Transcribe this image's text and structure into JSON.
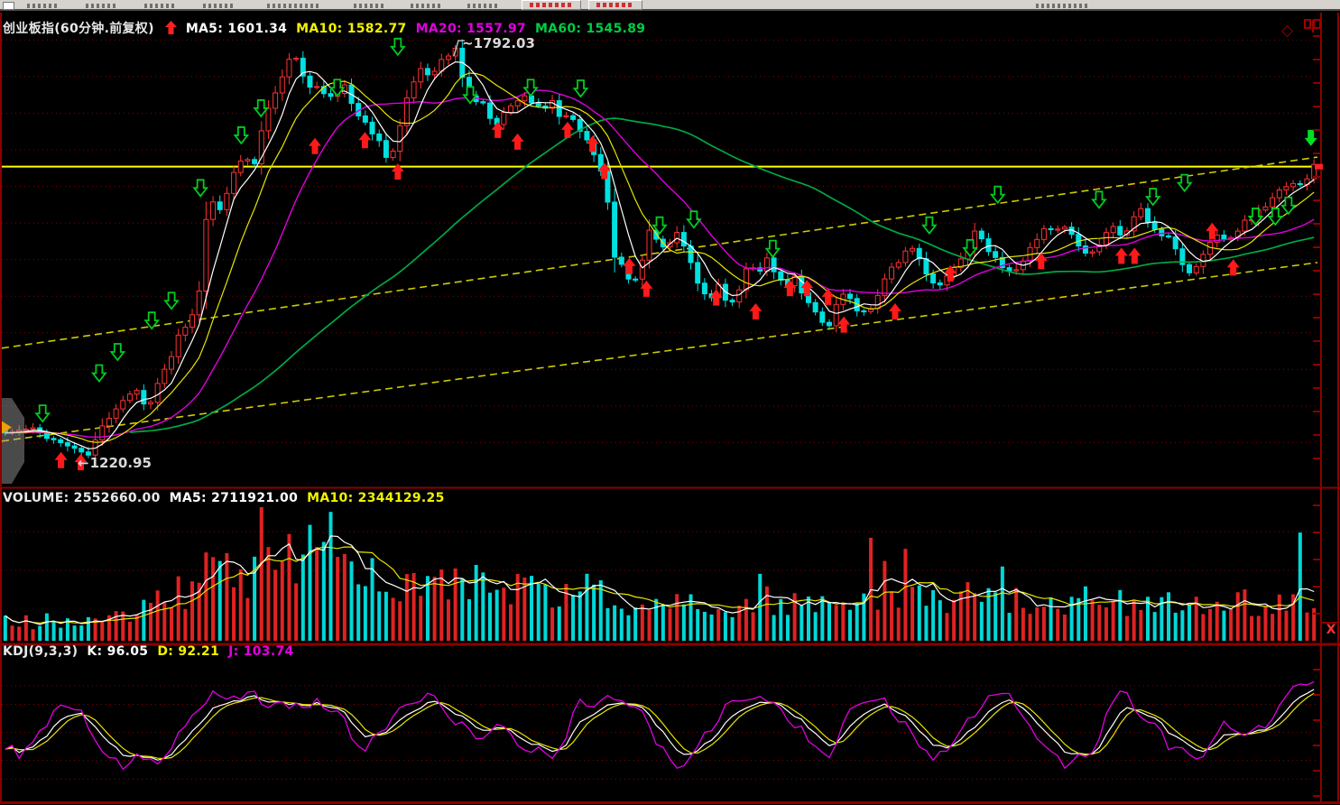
{
  "toolbar": {
    "buttons": 2
  },
  "main_chart": {
    "title": "创业板指(60分钟.前复权)",
    "ma_items": [
      {
        "text": "MA5: 1601.34",
        "color": "#ffffff"
      },
      {
        "text": "MA10: 1582.77",
        "color": "#f2f200"
      },
      {
        "text": "MA20: 1557.97",
        "color": "#e000e0"
      },
      {
        "text": "MA60: 1545.89",
        "color": "#00cc44"
      }
    ],
    "high_prefix": "~",
    "high_label": "1792.03",
    "low_arrow": "←",
    "low_label": "1220.95",
    "corner_diamond": "◇"
  },
  "volume_pane": {
    "volume_label": "VOLUME: 2552660.00",
    "ma5_label": "MA5: 2711921.00",
    "ma10_label": "MA10: 2344129.25",
    "close_button": "X"
  },
  "kdj_pane": {
    "name_label": "KDJ(9,3,3)",
    "k_label": "K: 96.05",
    "d_label": "D: 92.21",
    "j_label": "J: 103.74"
  },
  "chart_data": [
    {
      "type": "candlestick",
      "symbol": "创业板指",
      "period": "60分钟",
      "adjust": "前复权",
      "bars": 190,
      "seed": 11,
      "price_range": [
        1195,
        1830
      ],
      "visible_high": 1792.03,
      "visible_low": 1220.95,
      "grid_step": 50,
      "ma_values": {
        "MA5": 1601.34,
        "MA10": 1582.77,
        "MA20": 1557.97,
        "MA60": 1545.89
      },
      "close_anchors": [
        [
          0,
          1263
        ],
        [
          0.02,
          1269
        ],
        [
          0.041,
          1250
        ],
        [
          0.055,
          1241
        ],
        [
          0.062,
          1228
        ],
        [
          0.075,
          1275
        ],
        [
          0.088,
          1306
        ],
        [
          0.1,
          1324
        ],
        [
          0.108,
          1294
        ],
        [
          0.118,
          1337
        ],
        [
          0.127,
          1368
        ],
        [
          0.133,
          1398
        ],
        [
          0.141,
          1411
        ],
        [
          0.148,
          1455
        ],
        [
          0.152,
          1545
        ],
        [
          0.158,
          1582
        ],
        [
          0.165,
          1570
        ],
        [
          0.172,
          1600
        ],
        [
          0.178,
          1635
        ],
        [
          0.185,
          1640
        ],
        [
          0.191,
          1628
        ],
        [
          0.197,
          1690
        ],
        [
          0.205,
          1722
        ],
        [
          0.212,
          1748
        ],
        [
          0.219,
          1789
        ],
        [
          0.226,
          1752
        ],
        [
          0.232,
          1736
        ],
        [
          0.24,
          1742
        ],
        [
          0.247,
          1718
        ],
        [
          0.253,
          1725
        ],
        [
          0.26,
          1740
        ],
        [
          0.267,
          1702
        ],
        [
          0.274,
          1688
        ],
        [
          0.281,
          1674
        ],
        [
          0.287,
          1658
        ],
        [
          0.293,
          1636
        ],
        [
          0.298,
          1655
        ],
        [
          0.304,
          1700
        ],
        [
          0.31,
          1735
        ],
        [
          0.317,
          1762
        ],
        [
          0.324,
          1752
        ],
        [
          0.331,
          1768
        ],
        [
          0.338,
          1778
        ],
        [
          0.345,
          1788
        ],
        [
          0.352,
          1726
        ],
        [
          0.359,
          1718
        ],
        [
          0.366,
          1710
        ],
        [
          0.374,
          1684
        ],
        [
          0.381,
          1700
        ],
        [
          0.388,
          1712
        ],
        [
          0.395,
          1728
        ],
        [
          0.404,
          1712
        ],
        [
          0.411,
          1700
        ],
        [
          0.418,
          1716
        ],
        [
          0.425,
          1690
        ],
        [
          0.432,
          1696
        ],
        [
          0.439,
          1676
        ],
        [
          0.446,
          1662
        ],
        [
          0.452,
          1632
        ],
        [
          0.458,
          1618
        ],
        [
          0.464,
          1508
        ],
        [
          0.471,
          1494
        ],
        [
          0.478,
          1470
        ],
        [
          0.485,
          1483
        ],
        [
          0.492,
          1540
        ],
        [
          0.499,
          1524
        ],
        [
          0.506,
          1517
        ],
        [
          0.513,
          1537
        ],
        [
          0.521,
          1506
        ],
        [
          0.531,
          1458
        ],
        [
          0.539,
          1445
        ],
        [
          0.546,
          1470
        ],
        [
          0.553,
          1433
        ],
        [
          0.561,
          1458
        ],
        [
          0.568,
          1493
        ],
        [
          0.575,
          1481
        ],
        [
          0.582,
          1505
        ],
        [
          0.589,
          1475
        ],
        [
          0.596,
          1462
        ],
        [
          0.603,
          1475
        ],
        [
          0.61,
          1450
        ],
        [
          0.616,
          1433
        ],
        [
          0.623,
          1420
        ],
        [
          0.629,
          1408
        ],
        [
          0.636,
          1443
        ],
        [
          0.642,
          1457
        ],
        [
          0.648,
          1438
        ],
        [
          0.654,
          1425
        ],
        [
          0.661,
          1433
        ],
        [
          0.671,
          1470
        ],
        [
          0.678,
          1493
        ],
        [
          0.684,
          1500
        ],
        [
          0.691,
          1517
        ],
        [
          0.701,
          1493
        ],
        [
          0.708,
          1470
        ],
        [
          0.714,
          1462
        ],
        [
          0.721,
          1481
        ],
        [
          0.728,
          1493
        ],
        [
          0.734,
          1512
        ],
        [
          0.741,
          1540
        ],
        [
          0.748,
          1524
        ],
        [
          0.754,
          1505
        ],
        [
          0.761,
          1493
        ],
        [
          0.768,
          1487
        ],
        [
          0.774,
          1481
        ],
        [
          0.781,
          1511
        ],
        [
          0.788,
          1524
        ],
        [
          0.794,
          1540
        ],
        [
          0.801,
          1536
        ],
        [
          0.807,
          1553
        ],
        [
          0.814,
          1536
        ],
        [
          0.821,
          1517
        ],
        [
          0.828,
          1505
        ],
        [
          0.834,
          1517
        ],
        [
          0.841,
          1540
        ],
        [
          0.848,
          1547
        ],
        [
          0.854,
          1529
        ],
        [
          0.861,
          1553
        ],
        [
          0.868,
          1571
        ],
        [
          0.874,
          1548
        ],
        [
          0.881,
          1536
        ],
        [
          0.888,
          1529
        ],
        [
          0.894,
          1517
        ],
        [
          0.901,
          1487
        ],
        [
          0.908,
          1481
        ],
        [
          0.914,
          1505
        ],
        [
          0.921,
          1524
        ],
        [
          0.928,
          1536
        ],
        [
          0.934,
          1529
        ],
        [
          0.941,
          1540
        ],
        [
          0.948,
          1553
        ],
        [
          0.954,
          1559
        ],
        [
          0.961,
          1571
        ],
        [
          0.968,
          1583
        ],
        [
          0.975,
          1595
        ],
        [
          0.985,
          1602
        ],
        [
          0.993,
          1609
        ],
        [
          1,
          1628
        ]
      ],
      "trendlines": [
        {
          "kind": "horizontal",
          "price": 1627,
          "color": "#ffff00",
          "style": "solid"
        },
        {
          "kind": "segment",
          "from": [
            0,
            1379
          ],
          "to": [
            1,
            1640
          ],
          "color": "#cccc00",
          "style": "dashed"
        },
        {
          "kind": "segment",
          "from": [
            0,
            1252
          ],
          "to": [
            1,
            1496
          ],
          "color": "#cccc00",
          "style": "dashed"
        }
      ],
      "buy_signals": [
        [
          0.045,
          1241
        ],
        [
          0.06,
          1238
        ],
        [
          0.238,
          1670
        ],
        [
          0.276,
          1678
        ],
        [
          0.301,
          1635
        ],
        [
          0.377,
          1692
        ],
        [
          0.392,
          1676
        ],
        [
          0.43,
          1692
        ],
        [
          0.449,
          1673
        ],
        [
          0.458,
          1636
        ],
        [
          0.477,
          1506
        ],
        [
          0.49,
          1475
        ],
        [
          0.543,
          1463
        ],
        [
          0.573,
          1444
        ],
        [
          0.599,
          1476
        ],
        [
          0.612,
          1476
        ],
        [
          0.628,
          1464
        ],
        [
          0.64,
          1426
        ],
        [
          0.679,
          1444
        ],
        [
          0.721,
          1496
        ],
        [
          0.79,
          1513
        ],
        [
          0.851,
          1520
        ],
        [
          0.861,
          1520
        ],
        [
          0.92,
          1554
        ],
        [
          0.936,
          1504
        ]
      ],
      "sell_signals": [
        [
          0.031,
          1275
        ],
        [
          0.074,
          1330
        ],
        [
          0.088,
          1359
        ],
        [
          0.114,
          1402
        ],
        [
          0.129,
          1429
        ],
        [
          0.151,
          1583
        ],
        [
          0.182,
          1655
        ],
        [
          0.197,
          1692
        ],
        [
          0.255,
          1720
        ],
        [
          0.301,
          1776
        ],
        [
          0.356,
          1710
        ],
        [
          0.402,
          1720
        ],
        [
          0.44,
          1719
        ],
        [
          0.5,
          1532
        ],
        [
          0.526,
          1540
        ],
        [
          0.586,
          1500
        ],
        [
          0.705,
          1532
        ],
        [
          0.736,
          1501
        ],
        [
          0.757,
          1574
        ],
        [
          0.834,
          1567
        ],
        [
          0.875,
          1571
        ],
        [
          0.899,
          1590
        ],
        [
          0.953,
          1544
        ],
        [
          0.968,
          1544
        ],
        [
          0.978,
          1559
        ]
      ],
      "sell_signal_solid": [
        0.995,
        1655
      ],
      "colors": {
        "up": "#ff3232",
        "down": "#00e0e0",
        "ma5": "#ffffff",
        "ma10": "#e6e600",
        "ma20": "#dd00dd",
        "ma60": "#00a844",
        "grid": "#8b0000"
      }
    },
    {
      "type": "bar",
      "name": "VOLUME",
      "current": 2552660.0,
      "ma5": 2711921.0,
      "ma10": 2344129.25,
      "seed": 23,
      "envelope_anchors": [
        [
          0,
          0.13
        ],
        [
          0.04,
          0.15
        ],
        [
          0.07,
          0.14
        ],
        [
          0.1,
          0.19
        ],
        [
          0.12,
          0.3
        ],
        [
          0.14,
          0.4
        ],
        [
          0.155,
          0.55
        ],
        [
          0.17,
          0.56
        ],
        [
          0.185,
          0.48
        ],
        [
          0.2,
          0.6
        ],
        [
          0.215,
          0.78
        ],
        [
          0.225,
          0.65
        ],
        [
          0.24,
          0.6
        ],
        [
          0.26,
          0.55
        ],
        [
          0.28,
          0.52
        ],
        [
          0.3,
          0.48
        ],
        [
          0.32,
          0.46
        ],
        [
          0.34,
          0.5
        ],
        [
          0.36,
          0.42
        ],
        [
          0.38,
          0.38
        ],
        [
          0.4,
          0.4
        ],
        [
          0.42,
          0.35
        ],
        [
          0.44,
          0.32
        ],
        [
          0.46,
          0.33
        ],
        [
          0.48,
          0.3
        ],
        [
          0.5,
          0.28
        ],
        [
          0.53,
          0.27
        ],
        [
          0.56,
          0.29
        ],
        [
          0.59,
          0.25
        ],
        [
          0.62,
          0.27
        ],
        [
          0.65,
          0.26
        ],
        [
          0.68,
          0.29
        ],
        [
          0.695,
          0.45
        ],
        [
          0.71,
          0.3
        ],
        [
          0.74,
          0.27
        ],
        [
          0.77,
          0.33
        ],
        [
          0.8,
          0.28
        ],
        [
          0.83,
          0.3
        ],
        [
          0.86,
          0.26
        ],
        [
          0.89,
          0.28
        ],
        [
          0.92,
          0.26
        ],
        [
          0.95,
          0.29
        ],
        [
          0.98,
          0.27
        ],
        [
          1,
          0.28
        ]
      ],
      "colors": {
        "up": "#e02222",
        "down": "#00d8d8",
        "ma5": "#ffffff",
        "ma10": "#e6e600"
      }
    },
    {
      "type": "line",
      "name": "KDJ",
      "params": [
        9,
        3,
        3
      ],
      "K": 96.05,
      "D": 92.21,
      "J": 103.74,
      "seed": 37,
      "range": [
        -20,
        125
      ],
      "gridlines": [
        100,
        80,
        50,
        20,
        0
      ],
      "k_anchors": [
        [
          0,
          32
        ],
        [
          0.012,
          28
        ],
        [
          0.03,
          52
        ],
        [
          0.045,
          72
        ],
        [
          0.06,
          68
        ],
        [
          0.075,
          30
        ],
        [
          0.09,
          20
        ],
        [
          0.105,
          26
        ],
        [
          0.12,
          20
        ],
        [
          0.14,
          55
        ],
        [
          0.16,
          82
        ],
        [
          0.18,
          88
        ],
        [
          0.2,
          84
        ],
        [
          0.22,
          78
        ],
        [
          0.24,
          84
        ],
        [
          0.26,
          62
        ],
        [
          0.275,
          40
        ],
        [
          0.29,
          52
        ],
        [
          0.31,
          78
        ],
        [
          0.33,
          84
        ],
        [
          0.35,
          62
        ],
        [
          0.365,
          45
        ],
        [
          0.38,
          56
        ],
        [
          0.4,
          36
        ],
        [
          0.42,
          28
        ],
        [
          0.44,
          72
        ],
        [
          0.46,
          86
        ],
        [
          0.48,
          82
        ],
        [
          0.5,
          42
        ],
        [
          0.515,
          24
        ],
        [
          0.53,
          34
        ],
        [
          0.55,
          68
        ],
        [
          0.57,
          84
        ],
        [
          0.59,
          80
        ],
        [
          0.61,
          55
        ],
        [
          0.63,
          34
        ],
        [
          0.65,
          76
        ],
        [
          0.67,
          84
        ],
        [
          0.69,
          60
        ],
        [
          0.71,
          30
        ],
        [
          0.73,
          44
        ],
        [
          0.75,
          78
        ],
        [
          0.77,
          84
        ],
        [
          0.79,
          50
        ],
        [
          0.81,
          20
        ],
        [
          0.83,
          30
        ],
        [
          0.85,
          78
        ],
        [
          0.87,
          74
        ],
        [
          0.89,
          40
        ],
        [
          0.91,
          24
        ],
        [
          0.93,
          52
        ],
        [
          0.95,
          44
        ],
        [
          0.965,
          60
        ],
        [
          0.98,
          85
        ],
        [
          1,
          96
        ]
      ],
      "colors": {
        "K": "#ffffff",
        "D": "#e6e600",
        "J": "#e000e0"
      }
    }
  ]
}
